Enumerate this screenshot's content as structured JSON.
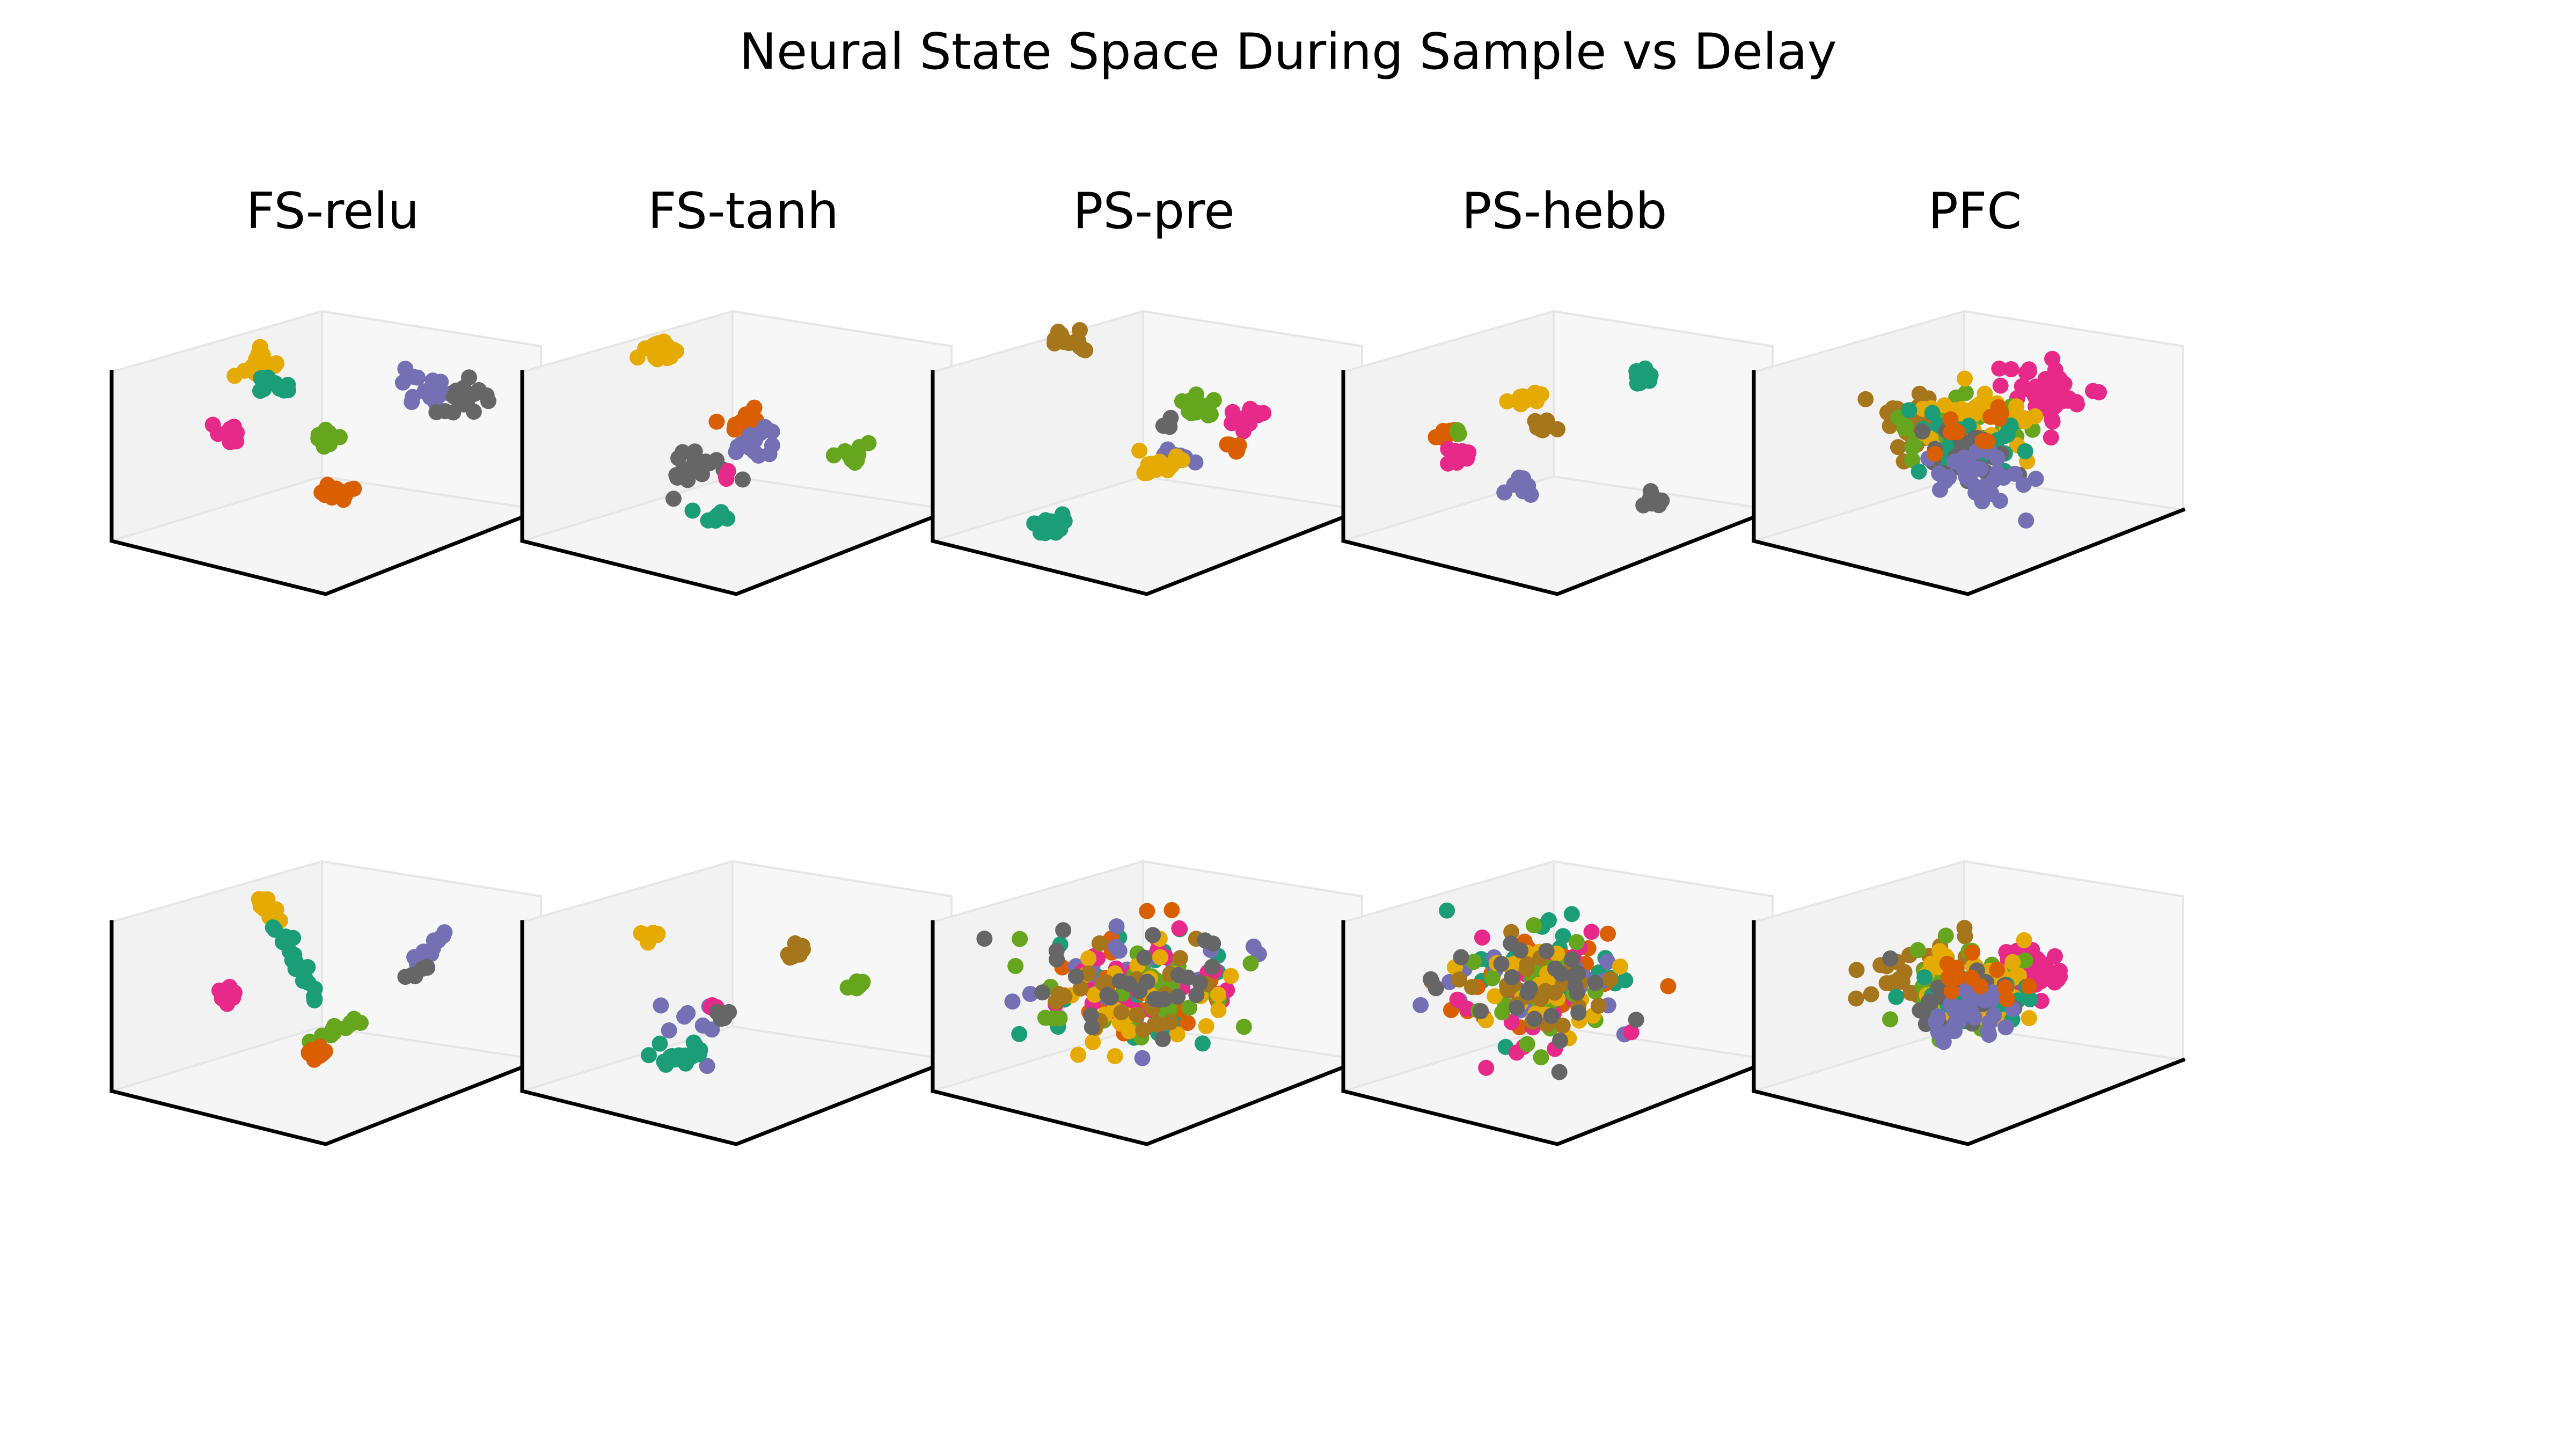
{
  "figure": {
    "title": "Neural State Space During Sample vs Delay",
    "background": "#ffffff"
  },
  "palette": [
    "#1b9e77",
    "#d95f02",
    "#7570b3",
    "#e7298a",
    "#66a61e",
    "#e6ab02",
    "#a6761d",
    "#666666"
  ],
  "chart_data": [
    {
      "type": "scatter",
      "projection": "3d",
      "phase": "sample",
      "title": "FS-relu",
      "grid": false,
      "ticks": false,
      "series": [
        {
          "color": "#e6ab02",
          "center": [
            0.12,
            0.58,
            0.88
          ],
          "spread": 0.04,
          "n": 14
        },
        {
          "color": "#1b9e77",
          "center": [
            0.15,
            0.62,
            0.74
          ],
          "spread": 0.03,
          "n": 12
        },
        {
          "color": "#7570b3",
          "center": [
            0.62,
            0.86,
            0.78
          ],
          "spread": 0.05,
          "n": 14
        },
        {
          "color": "#666666",
          "center": [
            0.72,
            0.92,
            0.7
          ],
          "spread": 0.05,
          "n": 16
        },
        {
          "color": "#e7298a",
          "center": [
            0.05,
            0.5,
            0.45
          ],
          "spread": 0.03,
          "n": 12
        },
        {
          "color": "#66a61e",
          "center": [
            0.4,
            0.62,
            0.5
          ],
          "spread": 0.02,
          "n": 10
        },
        {
          "color": "#d95f02",
          "center": [
            0.6,
            0.45,
            0.3
          ],
          "spread": 0.03,
          "n": 14
        }
      ]
    },
    {
      "type": "scatter",
      "projection": "3d",
      "phase": "sample",
      "title": "FS-tanh",
      "grid": false,
      "ticks": false,
      "series": [
        {
          "color": "#e6ab02",
          "center": [
            0.05,
            0.62,
            0.92
          ],
          "spread": 0.04,
          "n": 18
        },
        {
          "color": "#d95f02",
          "center": [
            0.5,
            0.55,
            0.65
          ],
          "spread": 0.04,
          "n": 18
        },
        {
          "color": "#7570b3",
          "center": [
            0.55,
            0.55,
            0.52
          ],
          "spread": 0.04,
          "n": 14
        },
        {
          "color": "#66a61e",
          "center": [
            0.85,
            0.7,
            0.5
          ],
          "spread": 0.03,
          "n": 12
        },
        {
          "color": "#666666",
          "center": [
            0.4,
            0.45,
            0.38
          ],
          "spread": 0.05,
          "n": 18
        },
        {
          "color": "#1b9e77",
          "center": [
            0.55,
            0.35,
            0.18
          ],
          "spread": 0.02,
          "n": 12
        },
        {
          "color": "#e7298a",
          "center": [
            0.5,
            0.48,
            0.36
          ],
          "spread": 0.02,
          "n": 3
        }
      ]
    },
    {
      "type": "scatter",
      "projection": "3d",
      "phase": "sample",
      "title": "PS-pre",
      "grid": false,
      "ticks": false,
      "series": [
        {
          "color": "#a6761d",
          "center": [
            0.05,
            0.62,
            0.95
          ],
          "spread": 0.03,
          "n": 14
        },
        {
          "color": "#66a61e",
          "center": [
            0.5,
            0.75,
            0.66
          ],
          "spread": 0.03,
          "n": 14
        },
        {
          "color": "#e7298a",
          "center": [
            0.68,
            0.8,
            0.65
          ],
          "spread": 0.03,
          "n": 16
        },
        {
          "color": "#d95f02",
          "center": [
            0.68,
            0.75,
            0.48
          ],
          "spread": 0.02,
          "n": 8
        },
        {
          "color": "#7570b3",
          "center": [
            0.55,
            0.6,
            0.46
          ],
          "spread": 0.03,
          "n": 10
        },
        {
          "color": "#e6ab02",
          "center": [
            0.5,
            0.55,
            0.38
          ],
          "spread": 0.04,
          "n": 18
        },
        {
          "color": "#1b9e77",
          "center": [
            0.3,
            0.25,
            0.1
          ],
          "spread": 0.03,
          "n": 16
        },
        {
          "color": "#666666",
          "center": [
            0.45,
            0.65,
            0.58
          ],
          "spread": 0.02,
          "n": 4
        }
      ]
    },
    {
      "type": "scatter",
      "projection": "3d",
      "phase": "sample",
      "title": "PS-hebb",
      "grid": false,
      "ticks": false,
      "series": [
        {
          "color": "#e6ab02",
          "center": [
            0.32,
            0.55,
            0.74
          ],
          "spread": 0.02,
          "n": 12
        },
        {
          "color": "#1b9e77",
          "center": [
            0.62,
            0.8,
            0.86
          ],
          "spread": 0.02,
          "n": 12
        },
        {
          "color": "#a6761d",
          "center": [
            0.4,
            0.55,
            0.6
          ],
          "spread": 0.02,
          "n": 10
        },
        {
          "color": "#d95f02",
          "center": [
            0.05,
            0.45,
            0.48
          ],
          "spread": 0.02,
          "n": 8
        },
        {
          "color": "#e7298a",
          "center": [
            0.15,
            0.4,
            0.4
          ],
          "spread": 0.02,
          "n": 12
        },
        {
          "color": "#66a61e",
          "center": [
            0.08,
            0.46,
            0.5
          ],
          "spread": 0.01,
          "n": 3
        },
        {
          "color": "#7570b3",
          "center": [
            0.45,
            0.4,
            0.32
          ],
          "spread": 0.02,
          "n": 12
        },
        {
          "color": "#666666",
          "center": [
            0.9,
            0.55,
            0.3
          ],
          "spread": 0.02,
          "n": 10
        }
      ]
    },
    {
      "type": "scatter",
      "projection": "3d",
      "phase": "sample",
      "title": "PFC",
      "grid": false,
      "ticks": false,
      "series": [
        {
          "color": "#e7298a",
          "center": [
            0.55,
            0.8,
            0.72
          ],
          "spread": 0.09,
          "n": 40
        },
        {
          "color": "#a6761d",
          "center": [
            0.25,
            0.55,
            0.58
          ],
          "spread": 0.09,
          "n": 40
        },
        {
          "color": "#66a61e",
          "center": [
            0.45,
            0.6,
            0.58
          ],
          "spread": 0.1,
          "n": 40
        },
        {
          "color": "#e6ab02",
          "center": [
            0.45,
            0.58,
            0.58
          ],
          "spread": 0.1,
          "n": 40
        },
        {
          "color": "#1b9e77",
          "center": [
            0.45,
            0.55,
            0.5
          ],
          "spread": 0.1,
          "n": 30
        },
        {
          "color": "#666666",
          "center": [
            0.5,
            0.52,
            0.45
          ],
          "spread": 0.09,
          "n": 30
        },
        {
          "color": "#7570b3",
          "center": [
            0.55,
            0.5,
            0.38
          ],
          "spread": 0.09,
          "n": 30
        },
        {
          "color": "#d95f02",
          "center": [
            0.45,
            0.6,
            0.55
          ],
          "spread": 0.07,
          "n": 12
        }
      ]
    },
    {
      "type": "scatter",
      "projection": "3d",
      "phase": "delay",
      "title": "",
      "grid": false,
      "ticks": false,
      "series": [
        {
          "color": "#e6ab02",
          "line_from": [
            0.1,
            0.62,
            0.96
          ],
          "line_to": [
            0.18,
            0.6,
            0.82
          ],
          "spread": 0.012,
          "n": 14
        },
        {
          "color": "#1b9e77",
          "line_from": [
            0.18,
            0.6,
            0.8
          ],
          "line_to": [
            0.42,
            0.55,
            0.45
          ],
          "spread": 0.012,
          "n": 20
        },
        {
          "color": "#7570b3",
          "line_from": [
            0.7,
            0.88,
            0.82
          ],
          "line_to": [
            0.62,
            0.82,
            0.62
          ],
          "spread": 0.012,
          "n": 14
        },
        {
          "color": "#666666",
          "line_from": [
            0.64,
            0.84,
            0.62
          ],
          "line_to": [
            0.6,
            0.8,
            0.54
          ],
          "spread": 0.01,
          "n": 6
        },
        {
          "color": "#e7298a",
          "center": [
            0.05,
            0.5,
            0.4
          ],
          "spread": 0.02,
          "n": 10
        },
        {
          "color": "#66a61e",
          "line_from": [
            0.62,
            0.55,
            0.42
          ],
          "line_to": [
            0.52,
            0.45,
            0.28
          ],
          "spread": 0.012,
          "n": 12
        },
        {
          "color": "#d95f02",
          "center": [
            0.55,
            0.42,
            0.24
          ],
          "spread": 0.02,
          "n": 12
        }
      ]
    },
    {
      "type": "scatter",
      "projection": "3d",
      "phase": "delay",
      "title": "",
      "grid": false,
      "ticks": false,
      "series": [
        {
          "color": "#e6ab02",
          "center": [
            0.02,
            0.6,
            0.7
          ],
          "spread": 0.015,
          "n": 10
        },
        {
          "color": "#a6761d",
          "center": [
            0.55,
            0.75,
            0.72
          ],
          "spread": 0.015,
          "n": 10
        },
        {
          "color": "#66a61e",
          "center": [
            0.82,
            0.75,
            0.6
          ],
          "spread": 0.015,
          "n": 10
        },
        {
          "color": "#7570b3",
          "center": [
            0.28,
            0.5,
            0.38
          ],
          "spread": 0.08,
          "n": 8
        },
        {
          "color": "#e7298a",
          "center": [
            0.35,
            0.55,
            0.4
          ],
          "spread": 0.015,
          "n": 6
        },
        {
          "color": "#666666",
          "center": [
            0.4,
            0.55,
            0.36
          ],
          "spread": 0.015,
          "n": 5
        },
        {
          "color": "#1b9e77",
          "center": [
            0.35,
            0.38,
            0.18
          ],
          "spread": 0.04,
          "n": 18
        }
      ]
    },
    {
      "type": "scatter",
      "projection": "3d",
      "phase": "delay",
      "title": "",
      "grid": false,
      "ticks": false,
      "series": [
        {
          "color": "#1b9e77",
          "center": [
            0.4,
            0.55,
            0.5
          ],
          "spread": 0.16,
          "n": 28
        },
        {
          "color": "#d95f02",
          "center": [
            0.45,
            0.55,
            0.5
          ],
          "spread": 0.16,
          "n": 28
        },
        {
          "color": "#7570b3",
          "center": [
            0.4,
            0.55,
            0.5
          ],
          "spread": 0.15,
          "n": 28
        },
        {
          "color": "#e7298a",
          "center": [
            0.4,
            0.55,
            0.5
          ],
          "spread": 0.15,
          "n": 28
        },
        {
          "color": "#66a61e",
          "center": [
            0.4,
            0.55,
            0.5
          ],
          "spread": 0.16,
          "n": 28
        },
        {
          "color": "#e6ab02",
          "center": [
            0.45,
            0.55,
            0.5
          ],
          "spread": 0.15,
          "n": 28
        },
        {
          "color": "#a6761d",
          "center": [
            0.4,
            0.55,
            0.5
          ],
          "spread": 0.15,
          "n": 24
        },
        {
          "color": "#666666",
          "center": [
            0.35,
            0.55,
            0.5
          ],
          "spread": 0.16,
          "n": 28
        }
      ]
    },
    {
      "type": "scatter",
      "projection": "3d",
      "phase": "delay",
      "title": "",
      "grid": false,
      "ticks": false,
      "series": [
        {
          "color": "#1b9e77",
          "center": [
            0.38,
            0.55,
            0.55
          ],
          "spread": 0.15,
          "n": 28
        },
        {
          "color": "#d95f02",
          "center": [
            0.38,
            0.55,
            0.55
          ],
          "spread": 0.15,
          "n": 28
        },
        {
          "color": "#7570b3",
          "center": [
            0.38,
            0.55,
            0.5
          ],
          "spread": 0.14,
          "n": 28
        },
        {
          "color": "#e7298a",
          "center": [
            0.38,
            0.55,
            0.5
          ],
          "spread": 0.15,
          "n": 28
        },
        {
          "color": "#66a61e",
          "center": [
            0.38,
            0.55,
            0.52
          ],
          "spread": 0.15,
          "n": 28
        },
        {
          "color": "#e6ab02",
          "center": [
            0.4,
            0.55,
            0.55
          ],
          "spread": 0.15,
          "n": 28
        },
        {
          "color": "#a6761d",
          "center": [
            0.38,
            0.55,
            0.52
          ],
          "spread": 0.14,
          "n": 24
        },
        {
          "color": "#666666",
          "center": [
            0.38,
            0.55,
            0.55
          ],
          "spread": 0.15,
          "n": 26
        }
      ]
    },
    {
      "type": "scatter",
      "projection": "3d",
      "phase": "delay",
      "title": "",
      "grid": false,
      "ticks": false,
      "series": [
        {
          "color": "#a6761d",
          "center": [
            0.25,
            0.55,
            0.55
          ],
          "spread": 0.1,
          "n": 30
        },
        {
          "color": "#e7298a",
          "center": [
            0.55,
            0.75,
            0.62
          ],
          "spread": 0.07,
          "n": 30
        },
        {
          "color": "#66a61e",
          "center": [
            0.42,
            0.58,
            0.55
          ],
          "spread": 0.1,
          "n": 40
        },
        {
          "color": "#e6ab02",
          "center": [
            0.45,
            0.58,
            0.55
          ],
          "spread": 0.1,
          "n": 40
        },
        {
          "color": "#1b9e77",
          "center": [
            0.45,
            0.55,
            0.5
          ],
          "spread": 0.09,
          "n": 30
        },
        {
          "color": "#666666",
          "center": [
            0.45,
            0.52,
            0.45
          ],
          "spread": 0.08,
          "n": 28
        },
        {
          "color": "#7570b3",
          "center": [
            0.52,
            0.5,
            0.4
          ],
          "spread": 0.08,
          "n": 28
        },
        {
          "color": "#d95f02",
          "center": [
            0.45,
            0.62,
            0.55
          ],
          "spread": 0.07,
          "n": 12
        }
      ]
    }
  ]
}
